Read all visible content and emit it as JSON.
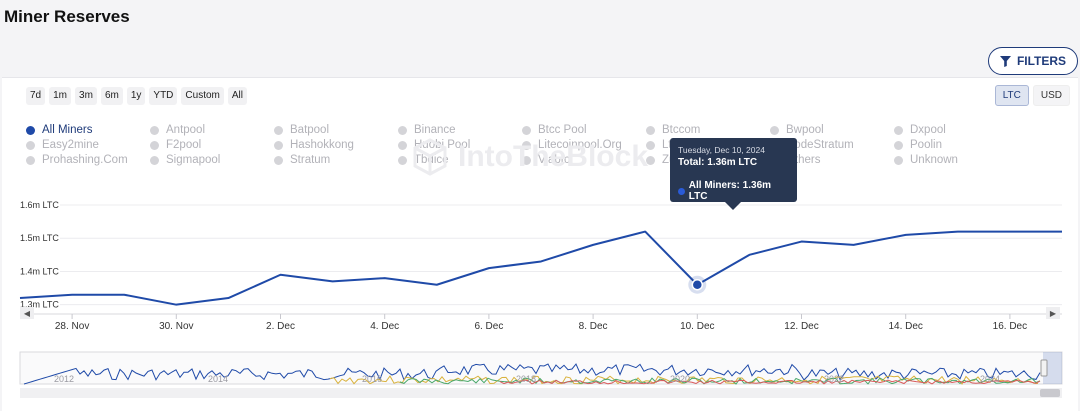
{
  "page": {
    "title": "Miner Reserves"
  },
  "filters": {
    "label": "FILTERS",
    "icon": "filter-icon"
  },
  "time_ranges": [
    "7d",
    "1m",
    "3m",
    "6m",
    "1y",
    "YTD",
    "Custom",
    "All"
  ],
  "units": {
    "options": [
      "LTC",
      "USD"
    ],
    "selected": "LTC"
  },
  "legend": [
    "All Miners",
    "Antpool",
    "Batpool",
    "Binance",
    "Btcc Pool",
    "Btccom",
    "Bwpool",
    "Dxpool",
    "Easy2mine",
    "F2pool",
    "Hashokkong",
    "Huobi.Pool",
    "Litecoinpool.Org",
    "Ltc.Top",
    "NodeStratum",
    "Poolin",
    "Prohashing.Com",
    "Sigmapool",
    "Stratum",
    "Tbdice",
    "Viabtc",
    "Zulupool",
    "Others",
    "Unknown"
  ],
  "legend_active": "All Miners",
  "colors": {
    "series": "#1f4aa8",
    "accent": "#1f3b7a",
    "tooltip_bg": "#283752"
  },
  "watermark": "IntoTheBlock",
  "tooltip": {
    "date": "Tuesday, Dec 10, 2024",
    "total": "Total: 1.36m LTC",
    "series_label": "All Miners: 1.36m LTC"
  },
  "chart_data": {
    "type": "line",
    "title": "Miner Reserves",
    "unit": "LTC",
    "ylim": [
      1.29,
      1.6
    ],
    "yticks": [
      {
        "value": 1.6,
        "label": "1.6m LTC"
      },
      {
        "value": 1.5,
        "label": "1.5m LTC"
      },
      {
        "value": 1.4,
        "label": "1.4m LTC"
      },
      {
        "value": 1.3,
        "label": "1.3m LTC"
      }
    ],
    "xlim": [
      27,
      47
    ],
    "xticks": [
      {
        "value": 28,
        "label": "28. Nov"
      },
      {
        "value": 30,
        "label": "30. Nov"
      },
      {
        "value": 32,
        "label": "2. Dec"
      },
      {
        "value": 34,
        "label": "4. Dec"
      },
      {
        "value": 36,
        "label": "6. Dec"
      },
      {
        "value": 38,
        "label": "8. Dec"
      },
      {
        "value": 40,
        "label": "10. Dec"
      },
      {
        "value": 42,
        "label": "12. Dec"
      },
      {
        "value": 44,
        "label": "14. Dec"
      },
      {
        "value": 46,
        "label": "16. Dec"
      }
    ],
    "grid": true,
    "series": [
      {
        "name": "All Miners",
        "x": [
          27,
          28,
          29,
          30,
          31,
          32,
          33,
          34,
          35,
          36,
          37,
          38,
          39,
          40,
          41,
          42,
          43,
          44,
          45,
          46,
          47
        ],
        "y": [
          1.32,
          1.33,
          1.33,
          1.3,
          1.32,
          1.39,
          1.37,
          1.38,
          1.36,
          1.41,
          1.43,
          1.48,
          1.52,
          1.36,
          1.45,
          1.49,
          1.48,
          1.51,
          1.52,
          1.52,
          1.52
        ]
      }
    ],
    "highlight": {
      "x": 40,
      "y": 1.36
    },
    "navigator": {
      "labels": [
        "2012",
        "2014",
        "2016",
        "2018",
        "2020",
        "2022",
        "2024"
      ]
    }
  }
}
